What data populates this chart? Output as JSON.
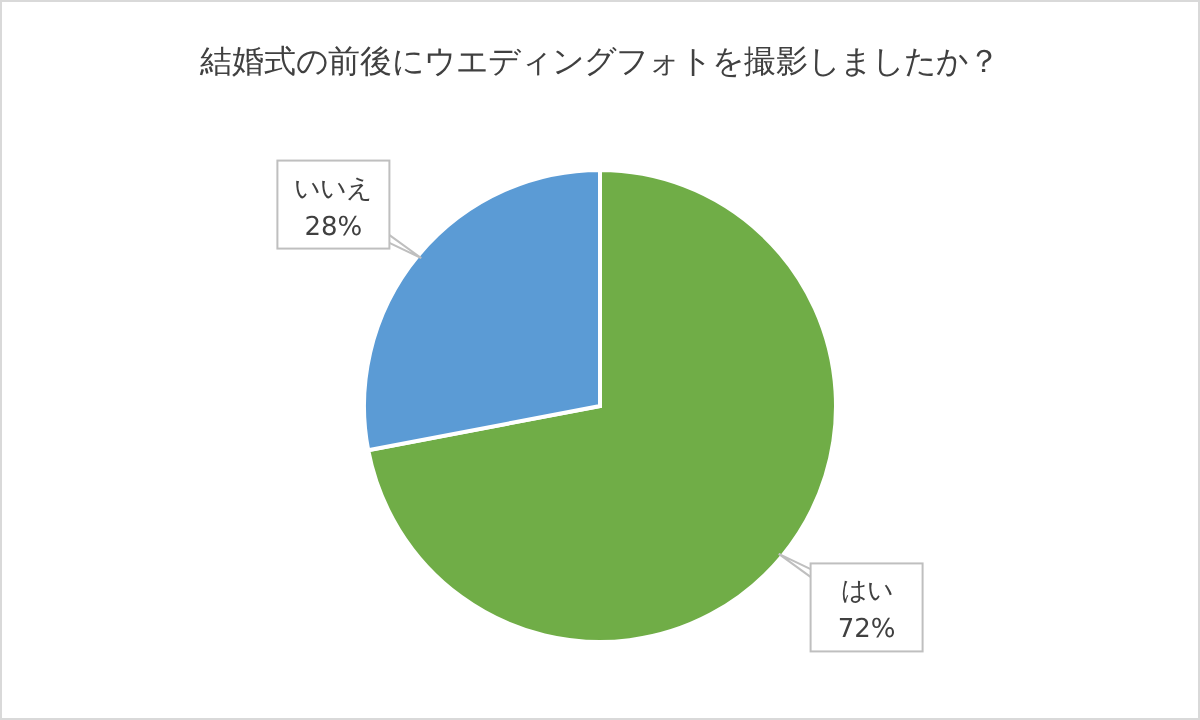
{
  "chart_data": {
    "type": "pie",
    "title": "結婚式の前後にウエディングフォトを撮影しましたか？",
    "categories": [
      "はい",
      "いいえ"
    ],
    "values": [
      72,
      28
    ],
    "colors": [
      "#70ad47",
      "#5b9bd5"
    ],
    "value_labels": [
      "72%",
      "28%"
    ]
  }
}
